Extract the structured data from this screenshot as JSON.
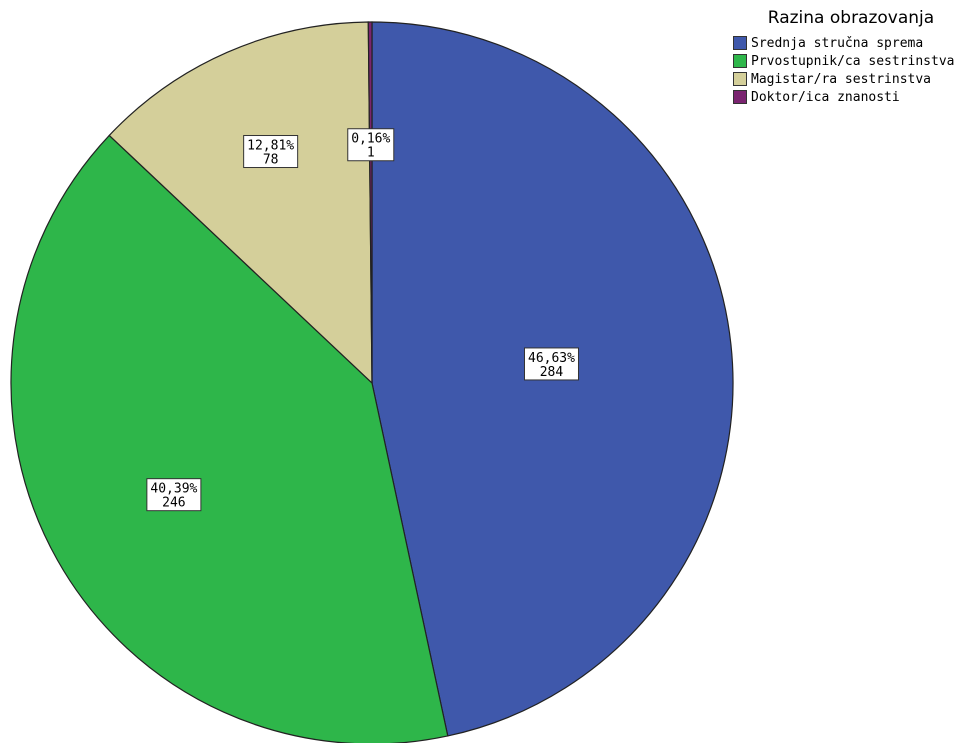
{
  "chart_data": {
    "type": "pie",
    "legend_title": "Razina obrazovanja",
    "legend_position": "top-right",
    "slices": [
      {
        "name": "Srednja stručna sprema",
        "value": 284,
        "percent_label": "46,63%",
        "count_label": "284",
        "color": "#3f58ab"
      },
      {
        "name": "Prvostupnik/ca sestrinstva",
        "value": 246,
        "percent_label": "40,39%",
        "count_label": "246",
        "color": "#2eb64a"
      },
      {
        "name": "Magistar/ra sestrinstva",
        "value": 78,
        "percent_label": "12,81%",
        "count_label": "78",
        "color": "#d4cf9a"
      },
      {
        "name": "Doktor/ica znanosti",
        "value": 1,
        "percent_label": "0,16%",
        "count_label": "1",
        "color": "#7a2470"
      }
    ]
  }
}
